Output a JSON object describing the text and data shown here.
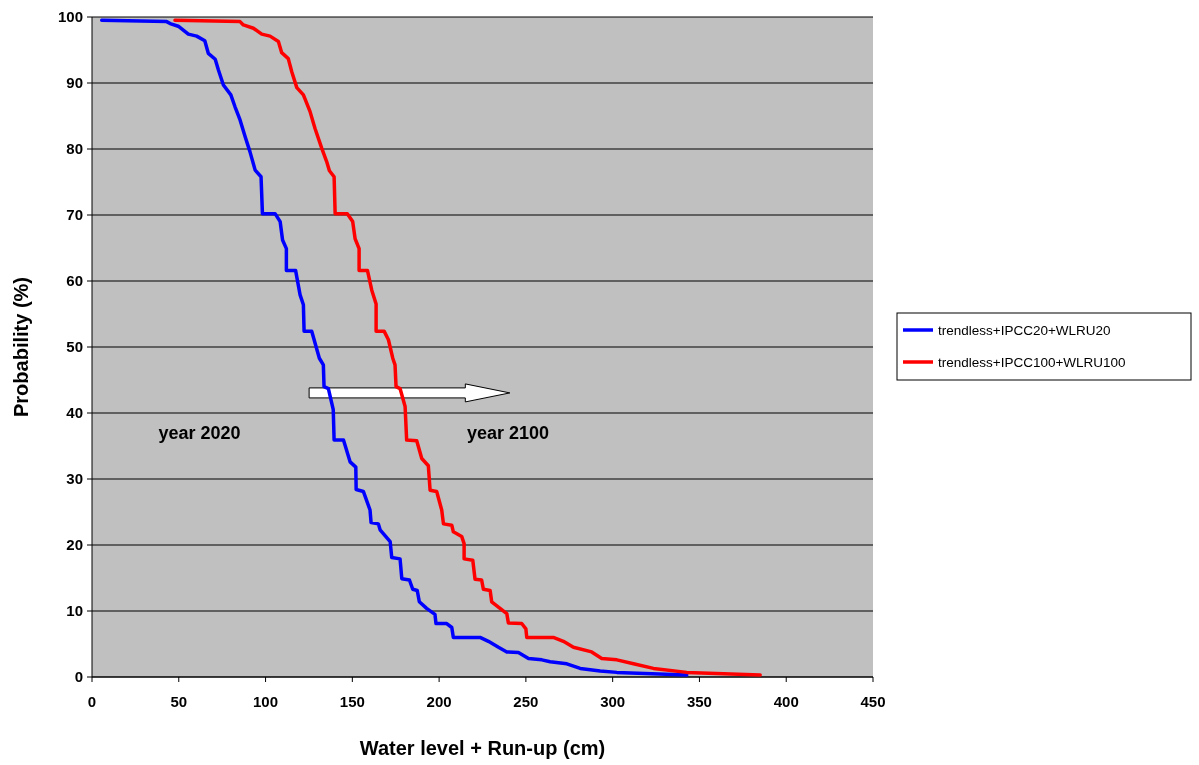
{
  "chart_data": {
    "type": "line",
    "xlabel": "Water level + Run-up (cm)",
    "ylabel": "Probability (%)",
    "xlim": [
      0,
      450
    ],
    "xticks": [
      0,
      50,
      100,
      150,
      200,
      250,
      300,
      350,
      400,
      450
    ],
    "ylim": [
      0,
      100
    ],
    "yticks": [
      0,
      10,
      20,
      30,
      40,
      50,
      60,
      70,
      80,
      90,
      100
    ],
    "grid": "y",
    "legend": "right",
    "marker": "none",
    "line_style": "solid",
    "annotations": [
      "year 2020",
      "year 2100"
    ],
    "series": [
      {
        "name": "trendless+IPCC20+WLRU20",
        "color": "#0000ff",
        "x": [
          5.6,
          43,
          45,
          49.7,
          55.5,
          60.3,
          65,
          67,
          71,
          72.8,
          75.7,
          80,
          82.4,
          85.3,
          88.2,
          91,
          94,
          97.4,
          98.2,
          105.5,
          108.4,
          109.8,
          112,
          112,
          117.3,
          119.9,
          121.8,
          122.2,
          126.6,
          131,
          133.3,
          133.7,
          136.2,
          139,
          139.5,
          144.9,
          148.7,
          152,
          152.2,
          156.4,
          160.2,
          160.8,
          165,
          166,
          171.8,
          172.7,
          177.5,
          178.5,
          182.9,
          184.8,
          187.4,
          188.6,
          192.8,
          197.6,
          198.2,
          204.4,
          207.3,
          208.2,
          223.6,
          228.4,
          234.2,
          239,
          245.7,
          251.5,
          259.2,
          264,
          273.6,
          281.3,
          292.8,
          302.4,
          342.7
        ],
        "values": [
          99.5,
          99.3,
          99,
          98.6,
          97.4,
          97.1,
          96.4,
          94.5,
          93.6,
          92,
          89.7,
          88.2,
          86.4,
          84.4,
          81.9,
          79.6,
          76.8,
          75.8,
          70.2,
          70.2,
          69,
          66.2,
          64.9,
          61.6,
          61.6,
          57.9,
          56.4,
          52.4,
          52.4,
          48.3,
          47.3,
          44,
          43.7,
          40.5,
          35.9,
          35.9,
          32.6,
          31.8,
          28.4,
          28.1,
          25.3,
          23.4,
          23.2,
          22.3,
          20.5,
          18.1,
          17.9,
          14.9,
          14.7,
          13.3,
          13.1,
          11.4,
          10.4,
          9.5,
          8.1,
          8.1,
          7.5,
          6,
          6,
          5.4,
          4.5,
          3.8,
          3.7,
          2.8,
          2.6,
          2.3,
          2,
          1.3,
          0.9,
          0.7,
          0.3
        ]
      },
      {
        "name": "trendless+IPCC100+WLRU100",
        "color": "#ff0000",
        "x": [
          47.8,
          85.3,
          87.2,
          93,
          97.8,
          102.6,
          107.4,
          109.3,
          113.1,
          115.1,
          118,
          121.8,
          125.6,
          128.5,
          132.4,
          135.2,
          136.8,
          139.5,
          140.1,
          147.1,
          150.2,
          151.6,
          153.9,
          153.9,
          158.7,
          161.2,
          163.7,
          163.7,
          168.3,
          170.8,
          173.3,
          174.6,
          175.2,
          177.5,
          180.4,
          181.3,
          187.1,
          190,
          193.8,
          194.8,
          198.6,
          201.5,
          202.5,
          207.3,
          208.2,
          213,
          214.4,
          214.4,
          219.4,
          220.7,
          224.5,
          225.5,
          229.4,
          230.3,
          239,
          239.9,
          247.6,
          250,
          250.5,
          265.8,
          271.6,
          277.4,
          287.9,
          293.7,
          302.4,
          312,
          323.5,
          342.7,
          385
        ],
        "values": [
          99.5,
          99.3,
          98.8,
          98.3,
          97.4,
          97.1,
          96.3,
          94.6,
          93.7,
          91.7,
          89.3,
          88.2,
          85.7,
          83.1,
          80.1,
          78.1,
          76.7,
          75.8,
          70.2,
          70.2,
          69,
          66.4,
          64.9,
          61.6,
          61.6,
          58.6,
          56.5,
          52.4,
          52.4,
          51.1,
          48.3,
          47.3,
          44,
          43.7,
          41,
          35.9,
          35.8,
          33.1,
          32,
          28.3,
          28.1,
          25.3,
          23.2,
          23,
          22,
          21.3,
          20.2,
          17.9,
          17.7,
          14.8,
          14.7,
          13.3,
          13.1,
          11.4,
          9.6,
          8.2,
          8.1,
          7.3,
          6,
          6,
          5.4,
          4.5,
          3.8,
          2.8,
          2.6,
          2,
          1.3,
          0.7,
          0.3
        ]
      }
    ]
  }
}
